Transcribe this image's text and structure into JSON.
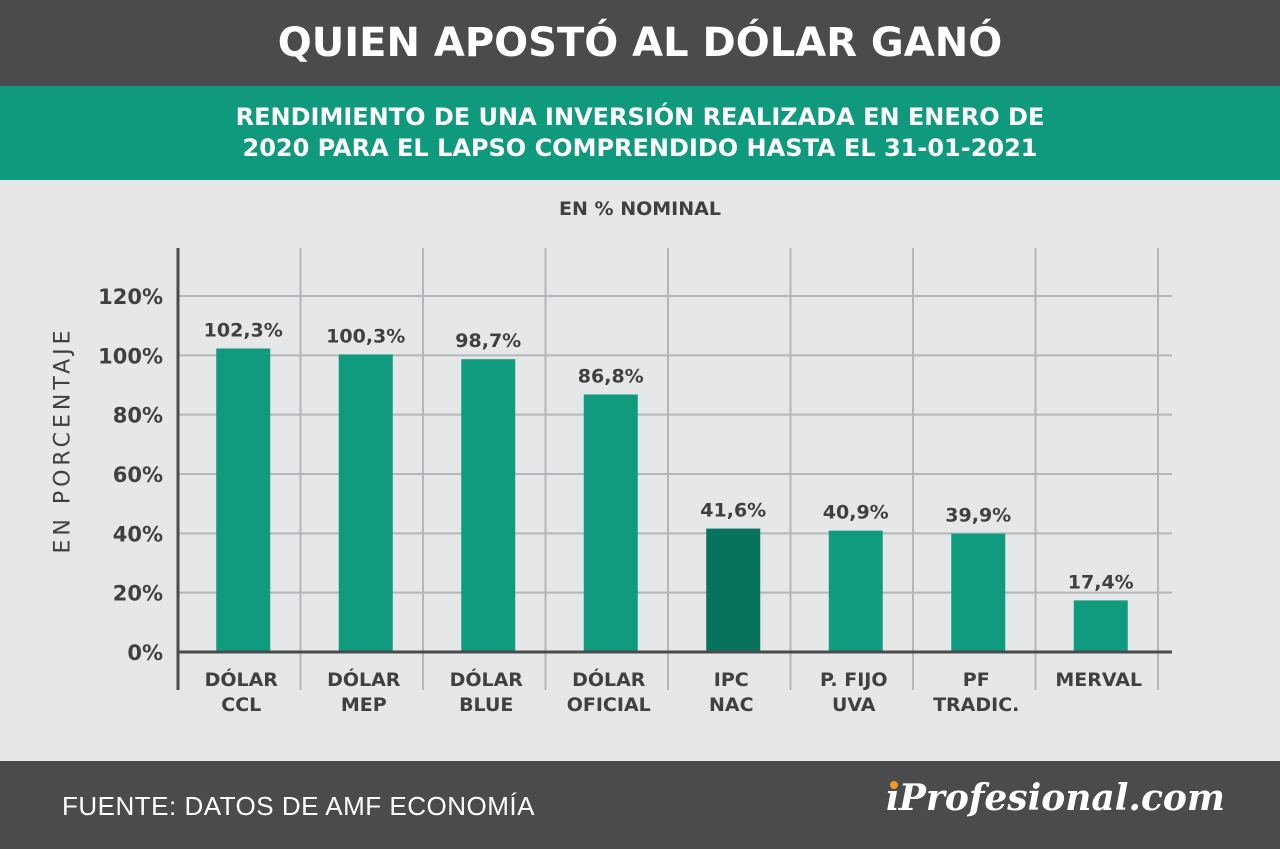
{
  "header": {
    "title": "QUIEN APOSTÓ AL DÓLAR GANÓ"
  },
  "subtitle": {
    "line1": "RENDIMIENTO DE UNA INVERSIÓN REALIZADA EN ENERO DE",
    "line2": "2020 PARA EL LAPSO COMPRENDIDO HASTA EL 31-01-2021"
  },
  "footer": {
    "source": "FUENTE: DATOS DE AMF ECONOMÍA",
    "logo": "iProfesional.com"
  },
  "colors": {
    "bar": "#109a7e",
    "bar_highlight": "#07735c",
    "header_bg": "#4a4b4d",
    "band_bg": "#0f9a7d",
    "plot_bg": "#e6e7e9",
    "grid": "#b4b6b9",
    "text": "#3f4042"
  },
  "chart_data": {
    "type": "bar",
    "title": "EN % NOMINAL",
    "ylabel": "EN PORCENTAJE",
    "xlabel": "",
    "ylim": [
      0,
      120
    ],
    "yticks": [
      0,
      20,
      40,
      60,
      80,
      100,
      120
    ],
    "ytick_labels": [
      "0%",
      "20%",
      "40%",
      "60%",
      "80%",
      "100%",
      "120%"
    ],
    "grid": true,
    "categories": [
      [
        "DÓLAR",
        "CCL"
      ],
      [
        "DÓLAR",
        "MEP"
      ],
      [
        "DÓLAR",
        "BLUE"
      ],
      [
        "DÓLAR",
        "OFICIAL"
      ],
      [
        "IPC",
        "NAC"
      ],
      [
        "P.  FIJO",
        "UVA"
      ],
      [
        "PF",
        "TRADIC."
      ],
      [
        "MERVAL"
      ]
    ],
    "values": [
      102.3,
      100.3,
      98.7,
      86.8,
      41.6,
      40.9,
      39.9,
      17.4
    ],
    "value_labels": [
      "102,3%",
      "100,3%",
      "98,7%",
      "86,8%",
      "41,6%",
      "40,9%",
      "39,9%",
      "17,4%"
    ],
    "highlight_index": 4
  }
}
